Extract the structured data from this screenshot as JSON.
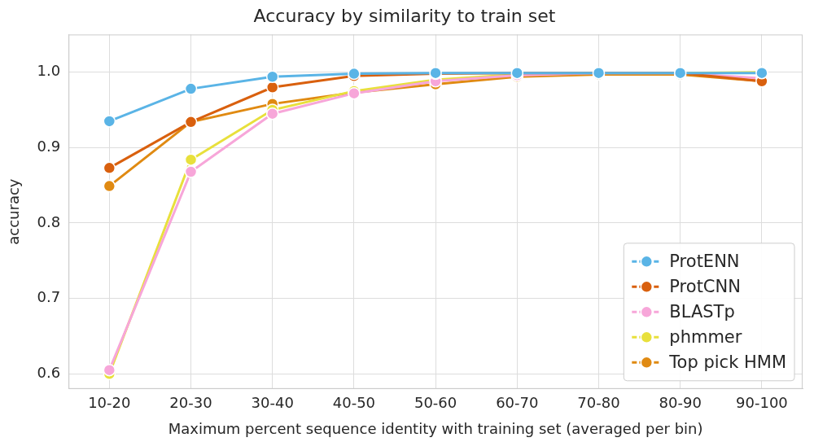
{
  "chart_data": {
    "type": "line",
    "title": "Accuracy by similarity to train set",
    "x_label": "Maximum percent sequence identity with training set (averaged per bin)",
    "y_label": "accuracy",
    "categories": [
      "10-20",
      "20-30",
      "30-40",
      "40-50",
      "50-60",
      "60-70",
      "70-80",
      "80-90",
      "90-100"
    ],
    "series": [
      {
        "name": "ProtENN",
        "color": "#5ab4e6",
        "values": [
          0.935,
          0.978,
          0.994,
          0.998,
          0.999,
          0.999,
          0.999,
          0.999,
          0.999
        ]
      },
      {
        "name": "ProtCNN",
        "color": "#d9600e",
        "values": [
          0.873,
          0.934,
          0.98,
          0.995,
          0.998,
          0.999,
          0.999,
          0.999,
          0.988
        ]
      },
      {
        "name": "BLASTp",
        "color": "#f7a6d9",
        "values": [
          0.605,
          0.868,
          0.945,
          0.972,
          0.988,
          0.996,
          0.999,
          0.999,
          0.992
        ]
      },
      {
        "name": "phmmer",
        "color": "#e8e03c",
        "values": [
          0.6,
          0.884,
          0.95,
          0.975,
          0.99,
          0.997,
          0.999,
          0.999,
          1.0
        ]
      },
      {
        "name": "Top pick HMM",
        "color": "#e08a12",
        "values": [
          0.849,
          0.934,
          0.958,
          0.973,
          0.984,
          0.994,
          0.997,
          0.997,
          0.988
        ]
      }
    ],
    "ylim": [
      0.58,
      1.05
    ],
    "yticks": [
      0.6,
      0.7,
      0.8,
      0.9,
      {
        "value": 1,
        "label": "1.0"
      }
    ],
    "grid": true,
    "legend": "lower right",
    "marker": "circle"
  }
}
